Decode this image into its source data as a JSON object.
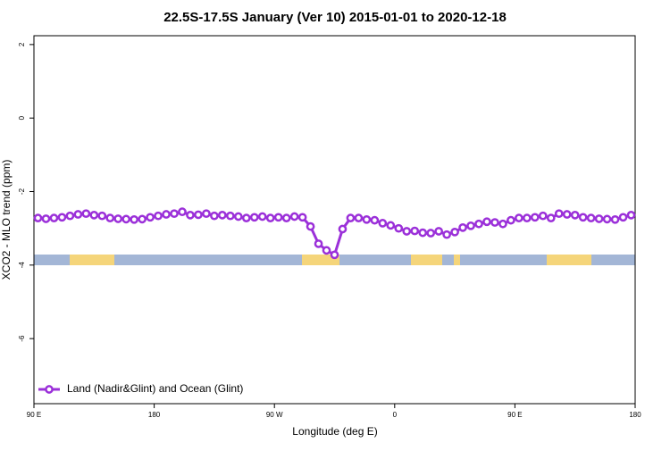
{
  "chart_data": {
    "type": "line",
    "title": "22.5S-17.5S January (Ver 10)   2015-01-01 to 2020-12-18",
    "x_label": "Longitude (deg E)",
    "y_label": "XCO2 - MLO trend (ppm)",
    "xlim": [
      90,
      540
    ],
    "ylim": [
      -7.77,
      2.24
    ],
    "xticks": [
      {
        "value": 90,
        "label": "90 E"
      },
      180,
      {
        "value": 270,
        "label": "90 W"
      },
      {
        "value": 360,
        "label": "0"
      },
      {
        "value": 450,
        "label": "90 E"
      },
      {
        "value": 540,
        "label": "180"
      }
    ],
    "yticks": [
      -6,
      -4,
      -2,
      0,
      2
    ],
    "legend": "bottom-left",
    "x": [
      93,
      99,
      105,
      111,
      117,
      123,
      129,
      135,
      141,
      147,
      153,
      159,
      165,
      171,
      177,
      183,
      189,
      195,
      201,
      207,
      213,
      219,
      225,
      231,
      237,
      243,
      249,
      255,
      261,
      267,
      273,
      279,
      285,
      291,
      297,
      303,
      309,
      315,
      321,
      327,
      333,
      339,
      345,
      351,
      357,
      363,
      369,
      375,
      381,
      387,
      393,
      399,
      405,
      411,
      417,
      423,
      429,
      435,
      441,
      447,
      453,
      459,
      465,
      471,
      477,
      483,
      489,
      495,
      501,
      507,
      513,
      519,
      525,
      531,
      537
    ],
    "series": [
      {
        "name": "Land (Nadir&Glint) and Ocean (Glint)",
        "color": "#9b30d9",
        "values": [
          -2.72,
          -2.74,
          -2.72,
          -2.7,
          -2.66,
          -2.62,
          -2.6,
          -2.64,
          -2.66,
          -2.72,
          -2.74,
          -2.75,
          -2.76,
          -2.75,
          -2.7,
          -2.66,
          -2.62,
          -2.6,
          -2.55,
          -2.64,
          -2.63,
          -2.6,
          -2.66,
          -2.64,
          -2.66,
          -2.68,
          -2.72,
          -2.7,
          -2.68,
          -2.72,
          -2.7,
          -2.72,
          -2.68,
          -2.7,
          -2.95,
          -3.42,
          -3.6,
          -3.72,
          -3.02,
          -2.72,
          -2.72,
          -2.76,
          -2.78,
          -2.86,
          -2.92,
          -3.0,
          -3.08,
          -3.07,
          -3.12,
          -3.13,
          -3.08,
          -3.17,
          -3.1,
          -2.98,
          -2.93,
          -2.88,
          -2.82,
          -2.84,
          -2.88,
          -2.78,
          -2.72,
          -2.72,
          -2.7,
          -2.66,
          -2.72,
          -2.6,
          -2.62,
          -2.64,
          -2.7,
          -2.72,
          -2.74,
          -2.75,
          -2.76,
          -2.7,
          -2.64
        ]
      }
    ]
  }
}
